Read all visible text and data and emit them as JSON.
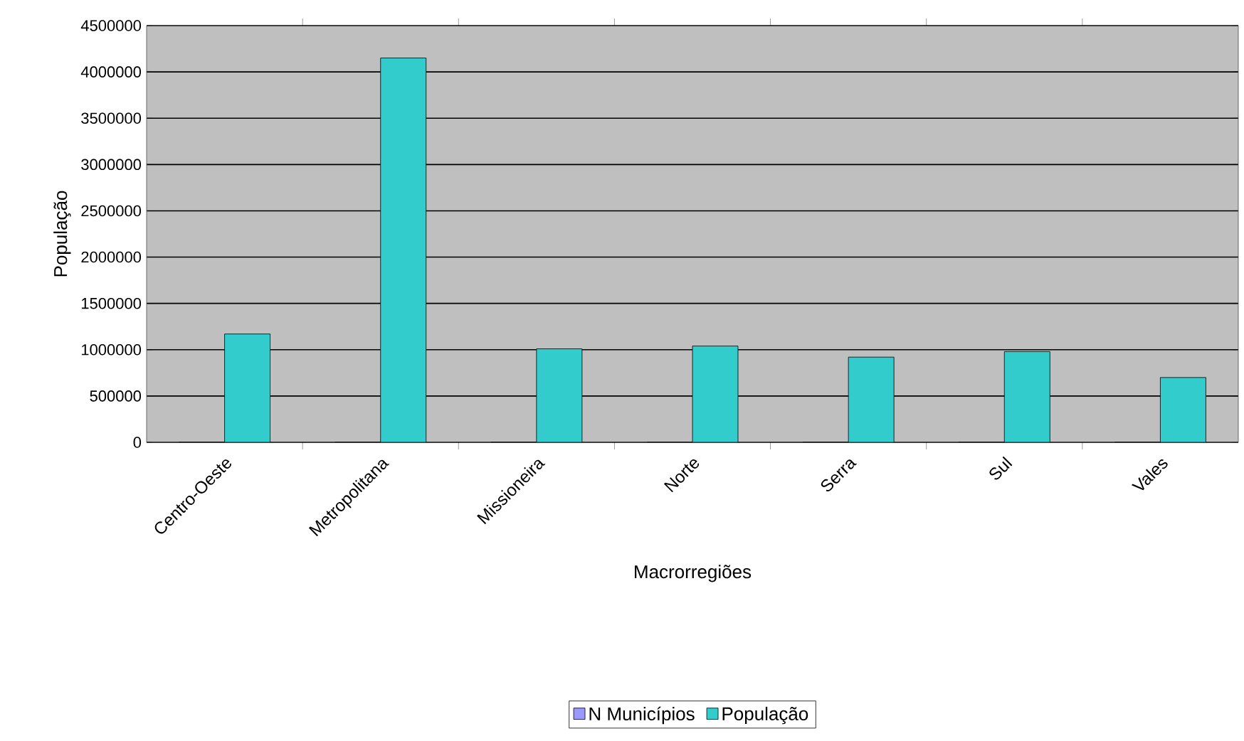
{
  "chart_data": {
    "type": "bar",
    "xlabel": "Macrorregiões",
    "ylabel": "População",
    "categories": [
      "Centro-Oeste",
      "Metropolitana",
      "Missioneira",
      "Norte",
      "Serra",
      "Sul",
      "Vales"
    ],
    "series": [
      {
        "name": "N Municípios",
        "color": "#9999ff",
        "values": [
          0,
          0,
          0,
          0,
          0,
          0,
          0
        ]
      },
      {
        "name": "População",
        "color": "#33cccc",
        "values": [
          1170000,
          4150000,
          1010000,
          1040000,
          920000,
          980000,
          700000
        ]
      }
    ],
    "ylim": [
      0,
      4500000
    ],
    "yticks": [
      0,
      500000,
      1000000,
      1500000,
      2000000,
      2500000,
      3000000,
      3500000,
      4000000,
      4500000
    ],
    "grid": "y",
    "legend": "bottom"
  }
}
